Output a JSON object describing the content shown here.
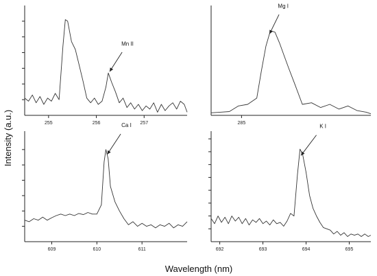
{
  "figure": {
    "ylabel": "Intensity (a.u.)",
    "xlabel": "Wavelength (nm)"
  },
  "chart_data": [
    {
      "type": "line",
      "annotation": "Mn II",
      "annotation_target": [
        256.25,
        1.35
      ],
      "xlim": [
        254.5,
        257.9
      ],
      "ylim": [
        0,
        3.5
      ],
      "xticks": [
        255,
        256,
        257
      ],
      "yticks": [
        0.5,
        1.0,
        1.5,
        2.0,
        2.5,
        3.0
      ],
      "grid": false,
      "x": [
        254.5,
        254.58,
        254.66,
        254.74,
        254.82,
        254.9,
        254.98,
        255.06,
        255.14,
        255.22,
        255.3,
        255.35,
        255.4,
        255.48,
        255.56,
        255.64,
        255.72,
        255.8,
        255.88,
        255.96,
        256.04,
        256.12,
        256.2,
        256.25,
        256.32,
        256.4,
        256.48,
        256.56,
        256.64,
        256.72,
        256.8,
        256.88,
        256.96,
        257.04,
        257.12,
        257.2,
        257.28,
        257.36,
        257.44,
        257.52,
        257.6,
        257.68,
        257.76,
        257.84,
        257.9
      ],
      "y": [
        0.55,
        0.45,
        0.65,
        0.4,
        0.6,
        0.35,
        0.55,
        0.45,
        0.7,
        0.5,
        2.2,
        3.05,
        3.0,
        2.35,
        2.1,
        1.6,
        1.1,
        0.55,
        0.4,
        0.55,
        0.35,
        0.45,
        0.9,
        1.35,
        1.05,
        0.75,
        0.4,
        0.55,
        0.25,
        0.4,
        0.2,
        0.35,
        0.15,
        0.3,
        0.2,
        0.4,
        0.1,
        0.35,
        0.15,
        0.3,
        0.4,
        0.2,
        0.45,
        0.35,
        0.1
      ]
    },
    {
      "type": "line",
      "annotation": "Mg I",
      "annotation_target": [
        285.35,
        2.55
      ],
      "xlim": [
        284.6,
        286.7
      ],
      "ylim": [
        0,
        3.5
      ],
      "xticks": [
        285
      ],
      "yticks": [],
      "grid": false,
      "x": [
        284.6,
        284.72,
        284.84,
        284.96,
        285.08,
        285.2,
        285.26,
        285.32,
        285.38,
        285.44,
        285.5,
        285.56,
        285.62,
        285.7,
        285.8,
        285.92,
        286.04,
        286.16,
        286.28,
        286.4,
        286.52,
        286.64,
        286.7
      ],
      "y": [
        0.08,
        0.1,
        0.12,
        0.3,
        0.35,
        0.55,
        1.4,
        2.2,
        2.7,
        2.65,
        2.3,
        1.9,
        1.5,
        1.0,
        0.35,
        0.4,
        0.25,
        0.35,
        0.2,
        0.3,
        0.15,
        0.1,
        0.05
      ]
    },
    {
      "type": "line",
      "annotation": "Ca I",
      "annotation_target": [
        610.2,
        2.8
      ],
      "xlim": [
        608.4,
        612.0
      ],
      "ylim": [
        0,
        3.6
      ],
      "xticks": [
        609,
        610,
        611
      ],
      "yticks": [
        0.5,
        1.0,
        1.5,
        2.0,
        2.5,
        3.0
      ],
      "grid": false,
      "x": [
        608.4,
        608.5,
        608.6,
        608.7,
        608.8,
        608.9,
        609.0,
        609.1,
        609.2,
        609.3,
        609.4,
        609.5,
        609.6,
        609.7,
        609.8,
        609.9,
        610.0,
        610.1,
        610.16,
        610.2,
        610.25,
        610.3,
        610.4,
        610.5,
        610.6,
        610.7,
        610.8,
        610.9,
        611.0,
        611.1,
        611.2,
        611.3,
        611.4,
        611.5,
        611.6,
        611.7,
        611.8,
        611.9,
        612.0
      ],
      "y": [
        0.7,
        0.65,
        0.75,
        0.7,
        0.8,
        0.7,
        0.78,
        0.85,
        0.9,
        0.85,
        0.9,
        0.85,
        0.92,
        0.88,
        0.95,
        0.9,
        0.9,
        1.2,
        2.6,
        3.0,
        2.7,
        1.8,
        1.3,
        1.0,
        0.75,
        0.55,
        0.65,
        0.5,
        0.6,
        0.5,
        0.55,
        0.45,
        0.55,
        0.5,
        0.6,
        0.45,
        0.55,
        0.5,
        0.65
      ]
    },
    {
      "type": "line",
      "annotation": "K I",
      "annotation_target": [
        693.85,
        3.3
      ],
      "xlim": [
        691.8,
        695.5
      ],
      "ylim": [
        0,
        4.3
      ],
      "xticks": [
        692,
        693,
        694,
        695
      ],
      "yticks": [
        0.5,
        1.0,
        1.5,
        2.0,
        2.5,
        3.0,
        3.5,
        4.0
      ],
      "grid": false,
      "x": [
        691.8,
        691.88,
        691.96,
        692.04,
        692.12,
        692.2,
        692.28,
        692.36,
        692.44,
        692.52,
        692.6,
        692.68,
        692.76,
        692.84,
        692.92,
        693.0,
        693.08,
        693.16,
        693.24,
        693.32,
        693.4,
        693.48,
        693.56,
        693.64,
        693.72,
        693.8,
        693.86,
        693.92,
        694.0,
        694.08,
        694.16,
        694.24,
        694.32,
        694.4,
        694.48,
        694.56,
        694.64,
        694.72,
        694.8,
        694.88,
        694.96,
        695.04,
        695.12,
        695.2,
        695.28,
        695.36,
        695.44,
        695.5
      ],
      "y": [
        0.9,
        0.7,
        1.0,
        0.75,
        0.95,
        0.7,
        1.0,
        0.8,
        0.95,
        0.7,
        0.9,
        0.65,
        0.85,
        0.75,
        0.9,
        0.7,
        0.8,
        0.65,
        0.85,
        0.7,
        0.75,
        0.6,
        0.8,
        1.1,
        1.0,
        2.6,
        3.6,
        3.4,
        2.7,
        1.8,
        1.3,
        1.0,
        0.75,
        0.55,
        0.5,
        0.45,
        0.3,
        0.4,
        0.25,
        0.35,
        0.2,
        0.3,
        0.25,
        0.3,
        0.2,
        0.3,
        0.2,
        0.25
      ]
    }
  ]
}
